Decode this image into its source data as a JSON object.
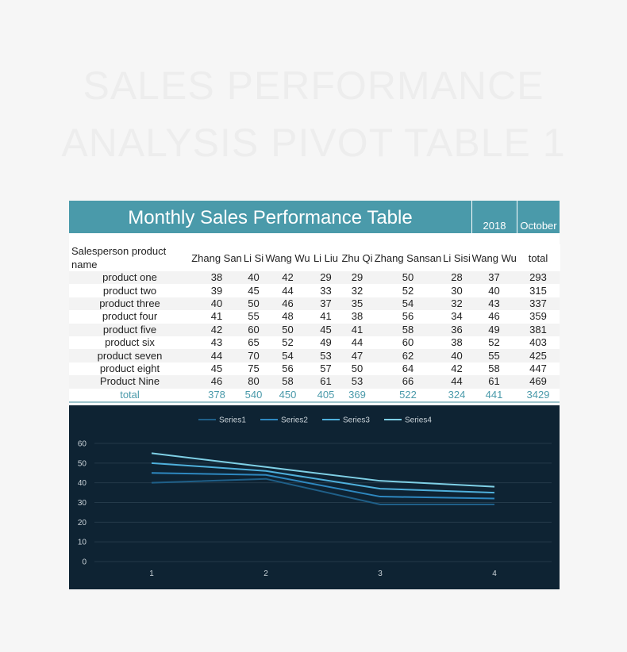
{
  "watermark": {
    "line1": "SALES PERFORMANCE",
    "line2": "ANALYSIS PIVOT TABLE 1"
  },
  "banner": {
    "title": "Monthly Sales Performance Table",
    "year": "2018",
    "month": "October"
  },
  "table": {
    "headers": [
      "Salesperson product name",
      "Zhang San",
      "Li Si",
      "Wang Wu",
      "Li Liu",
      "Zhu Qi",
      "Zhang Sansan",
      "Li Sisi",
      "Wang Wu",
      "total"
    ],
    "rows": [
      {
        "name": "product one",
        "values": [
          "38",
          "40",
          "42",
          "29",
          "29",
          "50",
          "28",
          "37",
          "293"
        ]
      },
      {
        "name": "product two",
        "values": [
          "39",
          "45",
          "44",
          "33",
          "32",
          "52",
          "30",
          "40",
          "315"
        ]
      },
      {
        "name": "product three",
        "values": [
          "40",
          "50",
          "46",
          "37",
          "35",
          "54",
          "32",
          "43",
          "337"
        ]
      },
      {
        "name": "product four",
        "values": [
          "41",
          "55",
          "48",
          "41",
          "38",
          "56",
          "34",
          "46",
          "359"
        ]
      },
      {
        "name": "product five",
        "values": [
          "42",
          "60",
          "50",
          "45",
          "41",
          "58",
          "36",
          "49",
          "381"
        ]
      },
      {
        "name": "product six",
        "values": [
          "43",
          "65",
          "52",
          "49",
          "44",
          "60",
          "38",
          "52",
          "403"
        ]
      },
      {
        "name": "product seven",
        "values": [
          "44",
          "70",
          "54",
          "53",
          "47",
          "62",
          "40",
          "55",
          "425"
        ]
      },
      {
        "name": "product eight",
        "values": [
          "45",
          "75",
          "56",
          "57",
          "50",
          "64",
          "42",
          "58",
          "447"
        ]
      },
      {
        "name": "Product Nine",
        "values": [
          "46",
          "80",
          "58",
          "61",
          "53",
          "66",
          "44",
          "61",
          "469"
        ]
      }
    ],
    "total": {
      "name": "total",
      "values": [
        "378",
        "540",
        "450",
        "405",
        "369",
        "522",
        "324",
        "441",
        "3429"
      ]
    }
  },
  "colors": {
    "banner": "#4a9aaa",
    "chart_bg": "#0e2333",
    "series": [
      "#1f5f88",
      "#2e88c0",
      "#4fb0dc",
      "#7fd0e6"
    ]
  },
  "chart_data": {
    "type": "line",
    "x": [
      "1",
      "2",
      "3",
      "4"
    ],
    "series": [
      {
        "name": "Series1",
        "values": [
          40,
          42,
          29,
          29
        ]
      },
      {
        "name": "Series2",
        "values": [
          45,
          44,
          33,
          32
        ]
      },
      {
        "name": "Series3",
        "values": [
          50,
          46,
          37,
          35
        ]
      },
      {
        "name": "Series4",
        "values": [
          55,
          48,
          41,
          38
        ]
      }
    ],
    "ylim": [
      0,
      60
    ],
    "yticks": [
      "0",
      "10",
      "20",
      "30",
      "40",
      "50",
      "60"
    ],
    "grid": true,
    "legend": "top-center"
  }
}
